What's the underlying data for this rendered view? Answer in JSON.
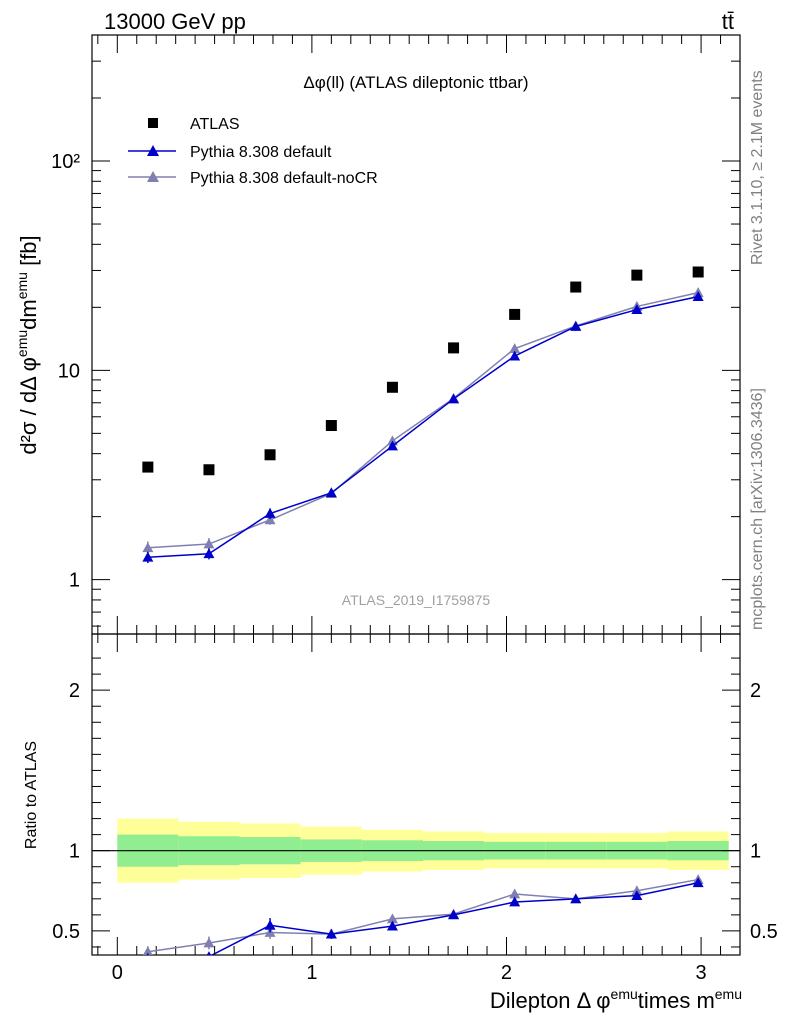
{
  "header": {
    "left": "13000 GeV pp",
    "right": "tt̄"
  },
  "plot_title": "Δφ(ll) (ATLAS dileptonic ttbar)",
  "side_labels": {
    "rivet": "Rivet 3.1.10, ≥ 2.1M events",
    "mcplots": "mcplots.cern.ch [arXiv:1306.3436]"
  },
  "analysis_id": "ATLAS_2019_I1759875",
  "legend": {
    "atlas": "ATLAS",
    "default": "Pythia 8.308 default",
    "nocr": "Pythia 8.308 default-noCR"
  },
  "axes": {
    "y_main_base": "d²σ / dΔ φ",
    "y_main_sup1": "emu",
    "y_main_mid": "dm",
    "y_main_sup2": "emu",
    "y_main_unit": " [fb]",
    "y_ratio": "Ratio to ATLAS",
    "x_base": "Dilepton Δ φ",
    "x_sup1": "emu",
    "x_mid": "times m",
    "x_sup2": "emu"
  },
  "colors": {
    "data": "#000000",
    "default": "#0000cc",
    "nocr": "#8080b0",
    "band_inner": "#90ee90",
    "band_outer": "#ffff99"
  },
  "chart_data": {
    "type": "scatter",
    "main": {
      "yscale": "log",
      "ylim": [
        0.55,
        400
      ],
      "yticks": [
        1,
        10,
        100
      ],
      "yticklabels": [
        "1",
        "10",
        "10²"
      ]
    },
    "ratio": {
      "ylim": [
        0.35,
        2.35
      ],
      "yticks": [
        0.5,
        1,
        2
      ],
      "yticklabels": [
        "0.5",
        "1",
        "2"
      ]
    },
    "xlim": [
      -0.13,
      3.2
    ],
    "xticks": [
      0,
      1,
      2,
      3
    ],
    "xticklabels": [
      "0",
      "1",
      "2",
      "3"
    ],
    "x": [
      0.157,
      0.471,
      0.785,
      1.1,
      1.414,
      1.728,
      2.042,
      2.356,
      2.67,
      2.985
    ],
    "bin_edges": [
      0,
      0.314,
      0.628,
      0.942,
      1.257,
      1.571,
      1.885,
      2.199,
      2.513,
      2.827,
      3.142
    ],
    "series": [
      {
        "name": "ATLAS",
        "values": [
          3.45,
          3.35,
          3.95,
          5.45,
          8.3,
          12.8,
          18.5,
          25,
          28.5,
          29.5
        ]
      },
      {
        "name": "Pythia 8.308 default",
        "values": [
          1.28,
          1.33,
          2.07,
          2.6,
          4.35,
          7.3,
          11.7,
          16.2,
          19.5,
          22.5
        ],
        "errors": [
          0.08,
          0.08,
          0.12,
          0.1,
          0.12,
          0.15,
          0.2,
          0.25,
          0.3,
          0.3
        ]
      },
      {
        "name": "Pythia 8.308 default-noCR",
        "values": [
          1.42,
          1.48,
          1.93,
          2.58,
          4.6,
          7.35,
          12.7,
          16.3,
          20.2,
          23.5
        ],
        "errors": [
          0.1,
          0.1,
          0.1,
          0.1,
          0.12,
          0.15,
          0.2,
          0.25,
          0.3,
          0.3
        ]
      }
    ],
    "ratio_series": [
      {
        "name": "Pythia 8.308 default",
        "values": [
          0.33,
          0.34,
          0.535,
          0.48,
          0.53,
          0.6,
          0.68,
          0.7,
          0.72,
          0.8
        ],
        "errors": [
          0.02,
          0.02,
          0.045,
          0.03,
          0.025,
          0.02,
          0.015,
          0.012,
          0.012,
          0.012
        ]
      },
      {
        "name": "Pythia 8.308 default-noCR",
        "values": [
          0.37,
          0.425,
          0.49,
          0.48,
          0.575,
          0.605,
          0.73,
          0.7,
          0.75,
          0.82
        ],
        "errors": [
          0.035,
          0.04,
          0.04,
          0.03,
          0.025,
          0.02,
          0.015,
          0.012,
          0.012,
          0.012
        ]
      }
    ],
    "band_inner": [
      0.1,
      0.09,
      0.085,
      0.07,
      0.065,
      0.06,
      0.055,
      0.055,
      0.055,
      0.06
    ],
    "band_outer": [
      0.2,
      0.18,
      0.17,
      0.15,
      0.13,
      0.12,
      0.11,
      0.11,
      0.11,
      0.12
    ],
    "grid": false,
    "legend_position": "top-left"
  }
}
